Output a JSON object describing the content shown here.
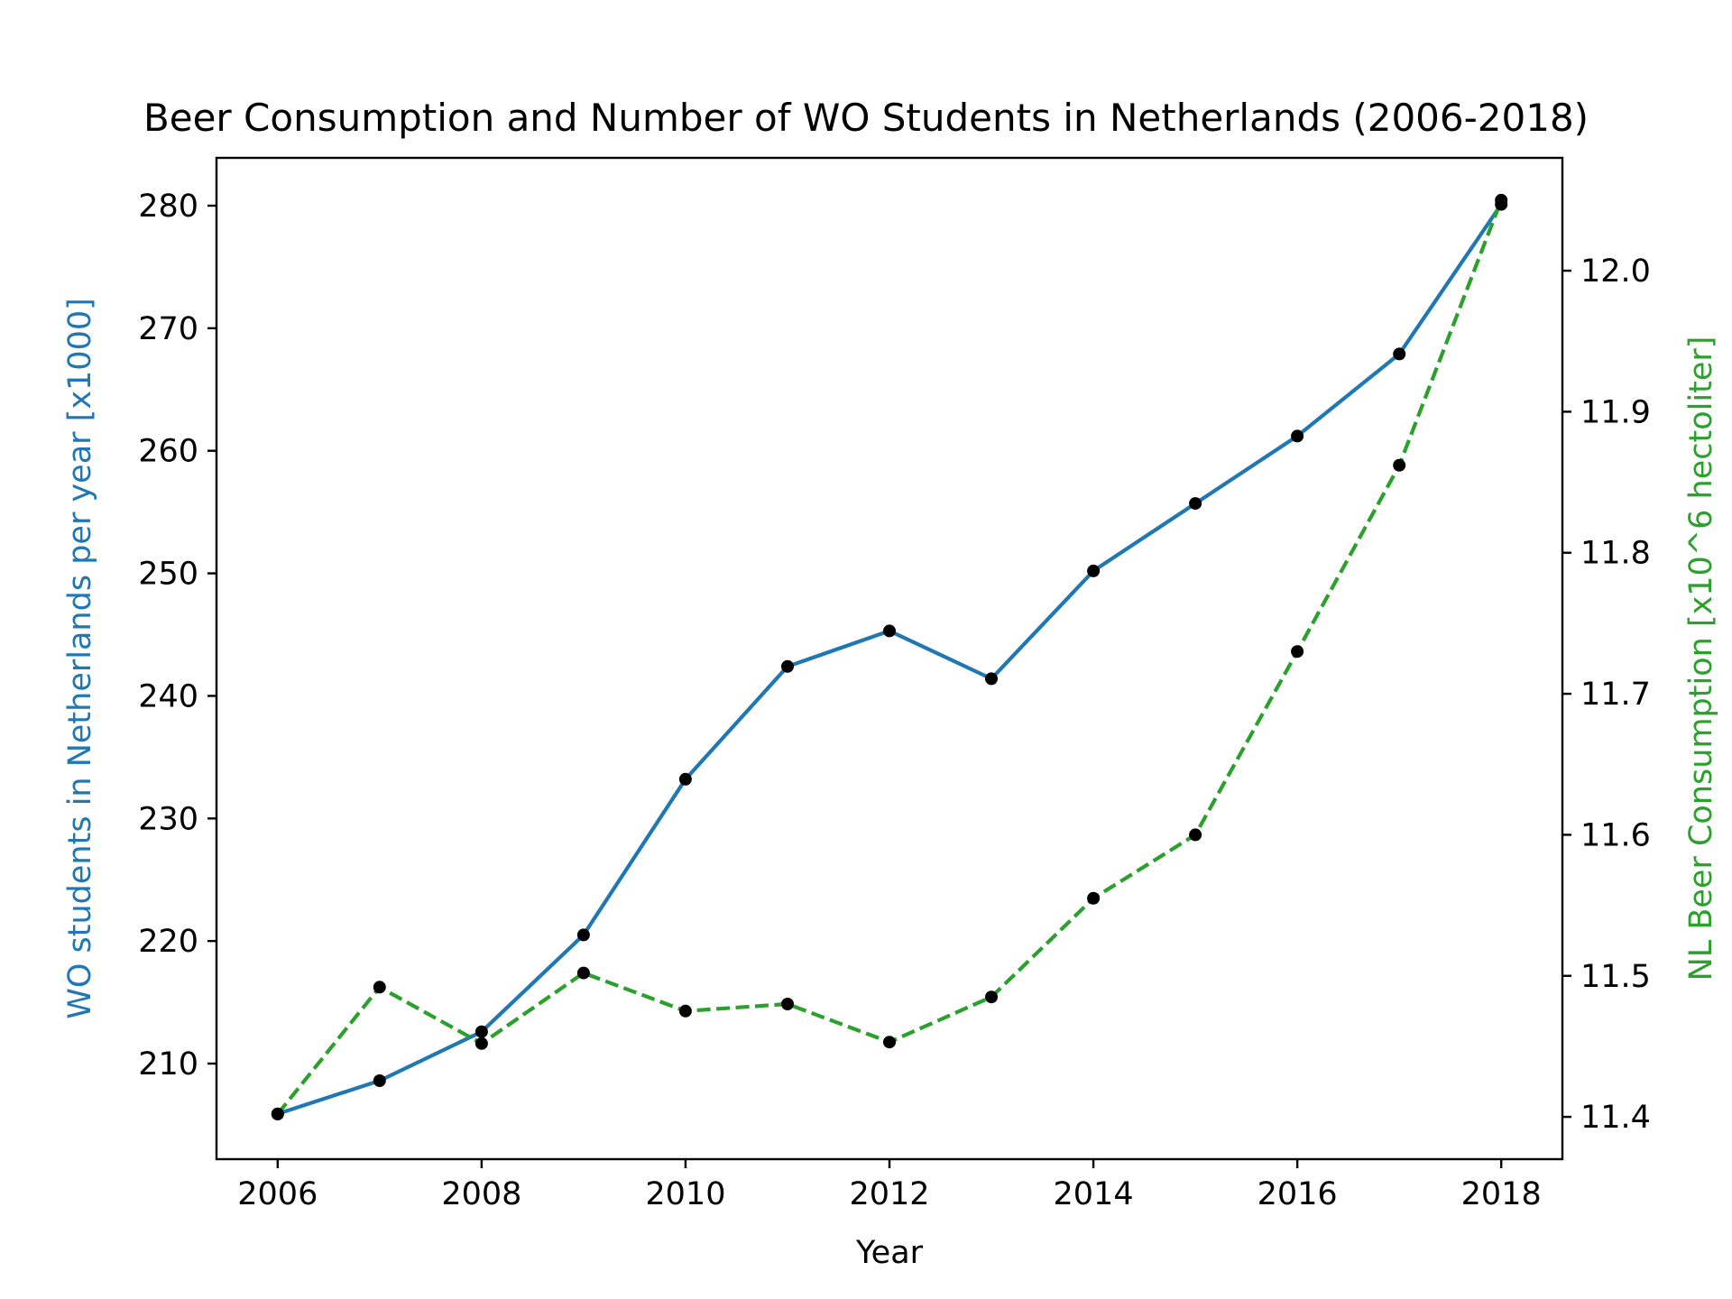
{
  "chart_data": {
    "type": "line",
    "title": "Beer Consumption and Number of WO Students in Netherlands (2006-2018)",
    "xlabel": "Year",
    "ylabel_left": "WO students in Netherlands per year [x1000]",
    "ylabel_right": "NL Beer Consumption [x10^6 hectoliter]",
    "x": [
      2006,
      2007,
      2008,
      2009,
      2010,
      2011,
      2012,
      2013,
      2014,
      2015,
      2016,
      2017,
      2018
    ],
    "xlim": [
      2005.4,
      2018.6
    ],
    "xticks": [
      2006,
      2008,
      2010,
      2012,
      2014,
      2016,
      2018
    ],
    "series": [
      {
        "key": "students",
        "axis": "left",
        "values": [
          205.9,
          208.6,
          212.6,
          220.5,
          233.2,
          242.4,
          245.3,
          241.4,
          250.2,
          255.7,
          261.2,
          267.9,
          280.1
        ],
        "color": "#1f77b4",
        "style": "solid"
      },
      {
        "key": "beer",
        "axis": "right",
        "values": [
          11.402,
          11.492,
          11.452,
          11.502,
          11.475,
          11.48,
          11.453,
          11.485,
          11.555,
          11.6,
          11.73,
          11.862,
          12.05
        ],
        "color": "#2ca02c",
        "style": "dashed"
      }
    ],
    "ylim_left": [
      202.2,
      283.9
    ],
    "yticks_left": [
      210,
      220,
      230,
      240,
      250,
      260,
      270,
      280
    ],
    "ylim_right": [
      11.37,
      12.08
    ],
    "yticks_right": [
      11.4,
      11.5,
      11.6,
      11.7,
      11.8,
      11.9,
      12.0
    ],
    "marker_color": "#000000",
    "grid": false,
    "legend": "none"
  }
}
